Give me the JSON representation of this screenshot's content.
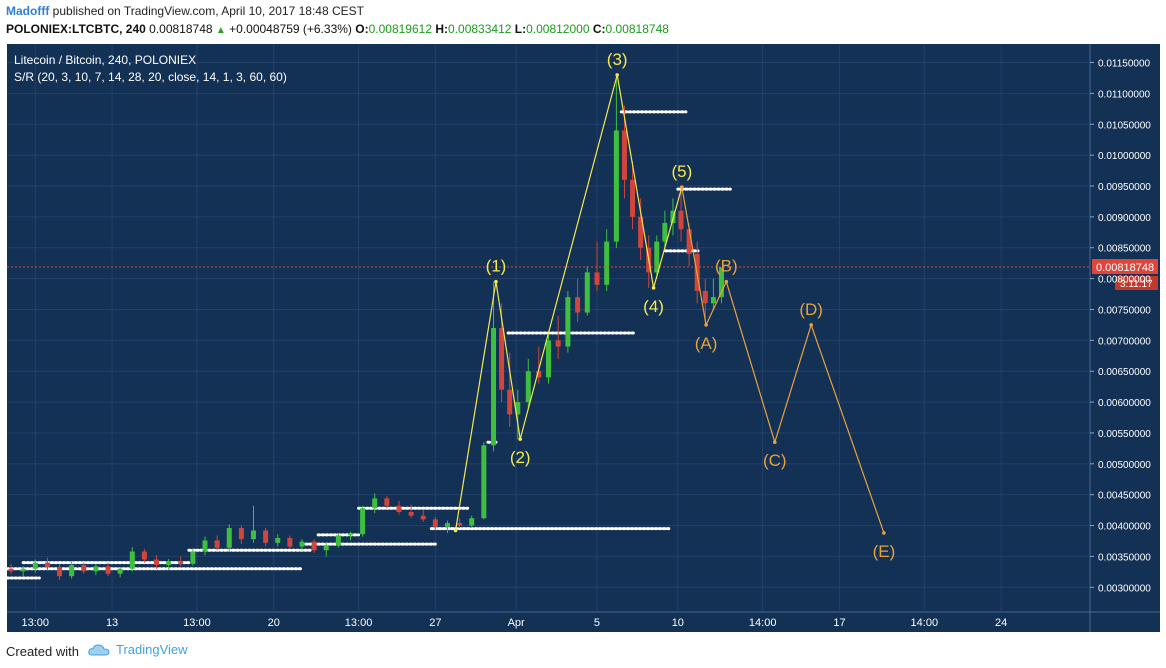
{
  "header": {
    "author": "Madofff",
    "published": "published on TradingView.com, April 10, 2017 18:48 CEST",
    "symbol": "POLONIEX:LTCBTC, 240",
    "last": "0.00818748",
    "change": "+0.00048759 (+6.33%)",
    "o_label": "O:",
    "o_value": "0.00819612",
    "h_label": "H:",
    "h_value": "0.00833412",
    "l_label": "L:",
    "l_value": "0.00812000",
    "c_label": "C:",
    "c_value": "0.00818748"
  },
  "legend": {
    "title": "Litecoin / Bitcoin, 240, POLONIEX",
    "indicator": "S/R (20, 3, 10, 7, 14, 28, 20, close, 14, 1, 3, 60, 60)"
  },
  "footer": {
    "created_with": "Created with",
    "brand": "TradingView"
  },
  "colors": {
    "background": "#133055",
    "grid": "#22416a",
    "candle_up": "#3fbf3f",
    "candle_down": "#d0463c",
    "impulse": "#f5e94b",
    "corrective": "#e8a23a",
    "price_line": "#e0453a",
    "sr_dots": "#ffffff"
  },
  "chart_data": {
    "type": "line",
    "title": "Litecoin / Bitcoin, 240, POLONIEX",
    "ylim": [
      0.0026,
      0.0118
    ],
    "y_ticks": [
      0.003,
      0.0035,
      0.004,
      0.0045,
      0.005,
      0.0055,
      0.006,
      0.0065,
      0.007,
      0.0075,
      0.008,
      0.0085,
      0.009,
      0.0095,
      0.01,
      0.0105,
      0.011,
      0.0115
    ],
    "y_tick_labels": [
      "0.00300000",
      "0.00350000",
      "0.00400000",
      "0.00450000",
      "0.00500000",
      "0.00550000",
      "0.00600000",
      "0.00650000",
      "0.00700000",
      "0.00750000",
      "0.00800000",
      "0.00850000",
      "0.00900000",
      "0.00950000",
      "0.01000000",
      "0.01050000",
      "0.01100000",
      "0.01150000"
    ],
    "x_ticks": [
      {
        "t": 0.35,
        "label": "13:00"
      },
      {
        "t": 1.3,
        "label": "13"
      },
      {
        "t": 2.35,
        "label": "13:00"
      },
      {
        "t": 3.3,
        "label": "20"
      },
      {
        "t": 4.35,
        "label": "13:00"
      },
      {
        "t": 5.3,
        "label": "27"
      },
      {
        "t": 6.3,
        "label": "Apr"
      },
      {
        "t": 7.3,
        "label": "5"
      },
      {
        "t": 8.3,
        "label": "10"
      },
      {
        "t": 9.35,
        "label": "14:00"
      },
      {
        "t": 10.3,
        "label": "17"
      },
      {
        "t": 11.35,
        "label": "14:00"
      },
      {
        "t": 12.3,
        "label": "24"
      }
    ],
    "current_price": {
      "value": 0.00818748,
      "label": "0.00818748",
      "countdown": "3:11:17"
    },
    "impulse_wave": {
      "series": [
        {
          "t": 5.55,
          "y": 0.00392
        },
        {
          "t": 6.05,
          "y": 0.00795,
          "label": "(1)"
        },
        {
          "t": 6.35,
          "y": 0.0054,
          "label": "(2)"
        },
        {
          "t": 7.55,
          "y": 0.0113,
          "label": "(3)"
        },
        {
          "t": 8.0,
          "y": 0.00785,
          "label": "(4)"
        },
        {
          "t": 8.35,
          "y": 0.00948,
          "label": "(5)"
        }
      ]
    },
    "corrective_wave": {
      "series": [
        {
          "t": 8.35,
          "y": 0.00948
        },
        {
          "t": 8.65,
          "y": 0.00725,
          "label": "(A)"
        },
        {
          "t": 8.9,
          "y": 0.00795,
          "label": "(B)"
        },
        {
          "t": 9.5,
          "y": 0.00535,
          "label": "(C)"
        },
        {
          "t": 9.95,
          "y": 0.00725,
          "label": "(D)"
        },
        {
          "t": 10.85,
          "y": 0.00388,
          "label": "(E)"
        }
      ]
    },
    "support_resistance": [
      {
        "y": 0.00315,
        "t0": 0.0,
        "t1": 0.4
      },
      {
        "y": 0.0033,
        "t0": 0.0,
        "t1": 3.65
      },
      {
        "y": 0.0034,
        "t0": 0.2,
        "t1": 2.25
      },
      {
        "y": 0.0036,
        "t0": 2.25,
        "t1": 3.75
      },
      {
        "y": 0.0037,
        "t0": 3.7,
        "t1": 5.3
      },
      {
        "y": 0.00385,
        "t0": 3.85,
        "t1": 4.35
      },
      {
        "y": 0.00395,
        "t0": 5.25,
        "t1": 8.2
      },
      {
        "y": 0.00428,
        "t0": 4.35,
        "t1": 5.7
      },
      {
        "y": 0.00535,
        "t0": 5.95,
        "t1": 6.05
      },
      {
        "y": 0.00712,
        "t0": 6.2,
        "t1": 7.75
      },
      {
        "y": 0.00845,
        "t0": 8.15,
        "t1": 8.55
      },
      {
        "y": 0.00945,
        "t0": 8.3,
        "t1": 8.95
      },
      {
        "y": 0.0107,
        "t0": 7.6,
        "t1": 8.4
      }
    ],
    "candles": [
      {
        "t": 0.05,
        "o": 0.0033,
        "h": 0.00338,
        "l": 0.00322,
        "c": 0.00326
      },
      {
        "t": 0.2,
        "o": 0.00326,
        "h": 0.00334,
        "l": 0.00318,
        "c": 0.0033
      },
      {
        "t": 0.35,
        "o": 0.0033,
        "h": 0.00345,
        "l": 0.00324,
        "c": 0.0034
      },
      {
        "t": 0.5,
        "o": 0.0034,
        "h": 0.00348,
        "l": 0.00328,
        "c": 0.00332
      },
      {
        "t": 0.65,
        "o": 0.00332,
        "h": 0.00338,
        "l": 0.00312,
        "c": 0.00318
      },
      {
        "t": 0.8,
        "o": 0.00318,
        "h": 0.00342,
        "l": 0.00314,
        "c": 0.00336
      },
      {
        "t": 0.95,
        "o": 0.00336,
        "h": 0.0034,
        "l": 0.00322,
        "c": 0.00326
      },
      {
        "t": 1.1,
        "o": 0.00326,
        "h": 0.00338,
        "l": 0.0032,
        "c": 0.00334
      },
      {
        "t": 1.25,
        "o": 0.00334,
        "h": 0.0034,
        "l": 0.00318,
        "c": 0.00322
      },
      {
        "t": 1.4,
        "o": 0.00322,
        "h": 0.00332,
        "l": 0.00316,
        "c": 0.0033
      },
      {
        "t": 1.55,
        "o": 0.0033,
        "h": 0.00365,
        "l": 0.00326,
        "c": 0.00358
      },
      {
        "t": 1.7,
        "o": 0.00358,
        "h": 0.00362,
        "l": 0.0034,
        "c": 0.00345
      },
      {
        "t": 1.85,
        "o": 0.00345,
        "h": 0.00352,
        "l": 0.0033,
        "c": 0.00336
      },
      {
        "t": 2.0,
        "o": 0.00336,
        "h": 0.00346,
        "l": 0.00328,
        "c": 0.00342
      },
      {
        "t": 2.15,
        "o": 0.00342,
        "h": 0.0035,
        "l": 0.00334,
        "c": 0.00338
      },
      {
        "t": 2.3,
        "o": 0.00338,
        "h": 0.00362,
        "l": 0.00335,
        "c": 0.00358
      },
      {
        "t": 2.45,
        "o": 0.00358,
        "h": 0.00382,
        "l": 0.00352,
        "c": 0.00376
      },
      {
        "t": 2.6,
        "o": 0.00376,
        "h": 0.00384,
        "l": 0.0036,
        "c": 0.00364
      },
      {
        "t": 2.75,
        "o": 0.00364,
        "h": 0.00402,
        "l": 0.00358,
        "c": 0.00396
      },
      {
        "t": 2.9,
        "o": 0.00396,
        "h": 0.004,
        "l": 0.0037,
        "c": 0.00378
      },
      {
        "t": 3.05,
        "o": 0.00378,
        "h": 0.00432,
        "l": 0.00372,
        "c": 0.00392
      },
      {
        "t": 3.2,
        "o": 0.00392,
        "h": 0.00396,
        "l": 0.00366,
        "c": 0.00372
      },
      {
        "t": 3.35,
        "o": 0.00372,
        "h": 0.00386,
        "l": 0.00366,
        "c": 0.0038
      },
      {
        "t": 3.5,
        "o": 0.0038,
        "h": 0.00384,
        "l": 0.00362,
        "c": 0.00366
      },
      {
        "t": 3.65,
        "o": 0.00366,
        "h": 0.00378,
        "l": 0.0036,
        "c": 0.00374
      },
      {
        "t": 3.8,
        "o": 0.00374,
        "h": 0.00378,
        "l": 0.00356,
        "c": 0.0036
      },
      {
        "t": 3.95,
        "o": 0.0036,
        "h": 0.00372,
        "l": 0.0035,
        "c": 0.00368
      },
      {
        "t": 4.1,
        "o": 0.00368,
        "h": 0.00388,
        "l": 0.00364,
        "c": 0.00384
      },
      {
        "t": 4.25,
        "o": 0.00384,
        "h": 0.0039,
        "l": 0.00376,
        "c": 0.00386
      },
      {
        "t": 4.4,
        "o": 0.00386,
        "h": 0.00432,
        "l": 0.00382,
        "c": 0.00428
      },
      {
        "t": 4.55,
        "o": 0.00428,
        "h": 0.00452,
        "l": 0.0042,
        "c": 0.00444
      },
      {
        "t": 4.7,
        "o": 0.00444,
        "h": 0.00448,
        "l": 0.00428,
        "c": 0.00432
      },
      {
        "t": 4.85,
        "o": 0.00432,
        "h": 0.0044,
        "l": 0.00418,
        "c": 0.00422
      },
      {
        "t": 5.0,
        "o": 0.00422,
        "h": 0.00434,
        "l": 0.00412,
        "c": 0.00416
      },
      {
        "t": 5.15,
        "o": 0.00416,
        "h": 0.00426,
        "l": 0.00406,
        "c": 0.0041
      },
      {
        "t": 5.3,
        "o": 0.0041,
        "h": 0.00414,
        "l": 0.00392,
        "c": 0.00398
      },
      {
        "t": 5.45,
        "o": 0.00398,
        "h": 0.00408,
        "l": 0.00388,
        "c": 0.00404
      },
      {
        "t": 5.6,
        "o": 0.00404,
        "h": 0.00412,
        "l": 0.00396,
        "c": 0.004
      },
      {
        "t": 5.75,
        "o": 0.004,
        "h": 0.00416,
        "l": 0.00396,
        "c": 0.00412
      },
      {
        "t": 5.9,
        "o": 0.00412,
        "h": 0.00535,
        "l": 0.0041,
        "c": 0.0053
      },
      {
        "t": 6.02,
        "o": 0.0053,
        "h": 0.00795,
        "l": 0.0052,
        "c": 0.0072
      },
      {
        "t": 6.12,
        "o": 0.0072,
        "h": 0.0076,
        "l": 0.006,
        "c": 0.0062
      },
      {
        "t": 6.22,
        "o": 0.0062,
        "h": 0.0068,
        "l": 0.0056,
        "c": 0.0058
      },
      {
        "t": 6.32,
        "o": 0.0058,
        "h": 0.0062,
        "l": 0.0054,
        "c": 0.006
      },
      {
        "t": 6.45,
        "o": 0.006,
        "h": 0.0067,
        "l": 0.0059,
        "c": 0.0065
      },
      {
        "t": 6.58,
        "o": 0.0065,
        "h": 0.0069,
        "l": 0.0063,
        "c": 0.0064
      },
      {
        "t": 6.7,
        "o": 0.0064,
        "h": 0.0071,
        "l": 0.0063,
        "c": 0.007
      },
      {
        "t": 6.82,
        "o": 0.007,
        "h": 0.0074,
        "l": 0.0067,
        "c": 0.0069
      },
      {
        "t": 6.94,
        "o": 0.0069,
        "h": 0.0078,
        "l": 0.0068,
        "c": 0.0077
      },
      {
        "t": 7.06,
        "o": 0.0077,
        "h": 0.008,
        "l": 0.0073,
        "c": 0.00745
      },
      {
        "t": 7.18,
        "o": 0.00745,
        "h": 0.0082,
        "l": 0.0074,
        "c": 0.0081
      },
      {
        "t": 7.3,
        "o": 0.0081,
        "h": 0.0086,
        "l": 0.0078,
        "c": 0.0079
      },
      {
        "t": 7.42,
        "o": 0.0079,
        "h": 0.0088,
        "l": 0.0078,
        "c": 0.0086
      },
      {
        "t": 7.54,
        "o": 0.0086,
        "h": 0.0113,
        "l": 0.0085,
        "c": 0.0104
      },
      {
        "t": 7.64,
        "o": 0.0104,
        "h": 0.0108,
        "l": 0.0093,
        "c": 0.0096
      },
      {
        "t": 7.74,
        "o": 0.0096,
        "h": 0.0099,
        "l": 0.0088,
        "c": 0.009
      },
      {
        "t": 7.84,
        "o": 0.009,
        "h": 0.0093,
        "l": 0.0083,
        "c": 0.0085
      },
      {
        "t": 7.94,
        "o": 0.0085,
        "h": 0.0087,
        "l": 0.00785,
        "c": 0.0081
      },
      {
        "t": 8.04,
        "o": 0.0081,
        "h": 0.0087,
        "l": 0.008,
        "c": 0.0086
      },
      {
        "t": 8.14,
        "o": 0.0086,
        "h": 0.0091,
        "l": 0.0085,
        "c": 0.0089
      },
      {
        "t": 8.24,
        "o": 0.0089,
        "h": 0.0093,
        "l": 0.0087,
        "c": 0.0091
      },
      {
        "t": 8.34,
        "o": 0.0091,
        "h": 0.00948,
        "l": 0.0086,
        "c": 0.0088
      },
      {
        "t": 8.44,
        "o": 0.0088,
        "h": 0.0089,
        "l": 0.0082,
        "c": 0.0084
      },
      {
        "t": 8.54,
        "o": 0.0084,
        "h": 0.0086,
        "l": 0.0076,
        "c": 0.0078
      },
      {
        "t": 8.64,
        "o": 0.0078,
        "h": 0.008,
        "l": 0.00725,
        "c": 0.0076
      },
      {
        "t": 8.74,
        "o": 0.0076,
        "h": 0.008,
        "l": 0.0075,
        "c": 0.0077
      },
      {
        "t": 8.84,
        "o": 0.0077,
        "h": 0.00812,
        "l": 0.0076,
        "c": 0.00818
      }
    ]
  }
}
